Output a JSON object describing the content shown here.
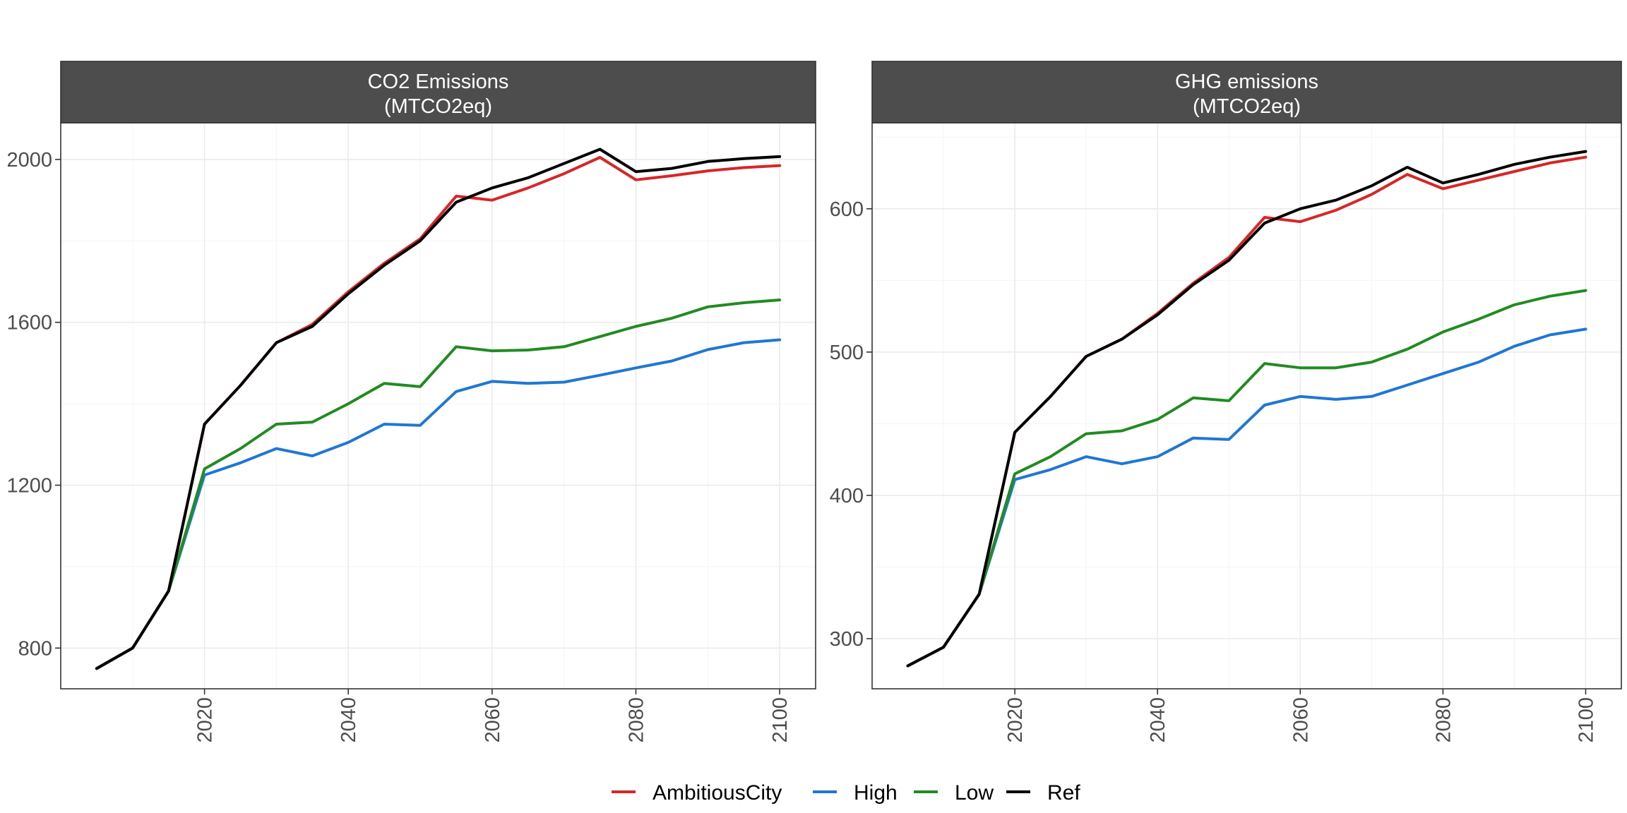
{
  "colors": {
    "AmbitiousCity": "#d62728",
    "High": "#1f77d4",
    "Low": "#228b22",
    "Ref": "#000000",
    "strip": "#4d4d4d"
  },
  "legend": [
    "AmbitiousCity",
    "High",
    "Low",
    "Ref"
  ],
  "chart_data": [
    {
      "type": "line",
      "title": "CO2 Emissions\n(MTCO2eq)",
      "xlabel": "",
      "ylabel": "",
      "x": [
        2005,
        2010,
        2015,
        2020,
        2025,
        2030,
        2035,
        2040,
        2045,
        2050,
        2055,
        2060,
        2065,
        2070,
        2075,
        2080,
        2085,
        2090,
        2095,
        2100
      ],
      "xlim": [
        2000,
        2105
      ],
      "ylim": [
        700,
        2090
      ],
      "xticks": [
        2020,
        2040,
        2060,
        2080,
        2100
      ],
      "yticks": [
        800,
        1200,
        1600,
        2000
      ],
      "grid": true,
      "series": [
        {
          "name": "AmbitiousCity",
          "values": [
            750,
            800,
            940,
            1350,
            1445,
            1550,
            1595,
            1675,
            1745,
            1805,
            1910,
            1900,
            1930,
            1965,
            2005,
            1950,
            1960,
            1972,
            1980,
            1985
          ]
        },
        {
          "name": "High",
          "values": [
            750,
            800,
            940,
            1225,
            1255,
            1290,
            1272,
            1305,
            1350,
            1347,
            1430,
            1455,
            1450,
            1453,
            1470,
            1488,
            1505,
            1533,
            1550,
            1557
          ]
        },
        {
          "name": "Low",
          "values": [
            750,
            800,
            940,
            1240,
            1290,
            1350,
            1355,
            1400,
            1450,
            1442,
            1540,
            1530,
            1532,
            1540,
            1565,
            1590,
            1610,
            1638,
            1648,
            1655
          ]
        },
        {
          "name": "Ref",
          "values": [
            750,
            800,
            940,
            1350,
            1445,
            1550,
            1590,
            1670,
            1740,
            1800,
            1895,
            1930,
            1955,
            1990,
            2025,
            1970,
            1978,
            1995,
            2002,
            2007
          ]
        }
      ]
    },
    {
      "type": "line",
      "title": "GHG emissions\n(MTCO2eq)",
      "xlabel": "",
      "ylabel": "",
      "x": [
        2005,
        2010,
        2015,
        2020,
        2025,
        2030,
        2035,
        2040,
        2045,
        2050,
        2055,
        2060,
        2065,
        2070,
        2075,
        2080,
        2085,
        2090,
        2095,
        2100
      ],
      "xlim": [
        2000,
        2105
      ],
      "ylim": [
        265,
        660
      ],
      "xticks": [
        2020,
        2040,
        2060,
        2080,
        2100
      ],
      "yticks": [
        300,
        400,
        500,
        600
      ],
      "grid": true,
      "series": [
        {
          "name": "AmbitiousCity",
          "values": [
            281,
            294,
            331,
            444,
            469,
            497,
            509,
            527,
            548,
            566,
            594,
            591,
            599,
            610,
            624,
            614,
            620,
            626,
            632,
            636
          ]
        },
        {
          "name": "High",
          "values": [
            281,
            294,
            331,
            411,
            418,
            427,
            422,
            427,
            440,
            439,
            463,
            469,
            467,
            469,
            477,
            485,
            493,
            504,
            512,
            516
          ]
        },
        {
          "name": "Low",
          "values": [
            281,
            294,
            331,
            415,
            427,
            443,
            445,
            453,
            468,
            466,
            492,
            489,
            489,
            493,
            502,
            514,
            523,
            533,
            539,
            543
          ]
        },
        {
          "name": "Ref",
          "values": [
            281,
            294,
            331,
            444,
            469,
            497,
            509,
            526,
            547,
            564,
            590,
            600,
            606,
            616,
            629,
            618,
            624,
            631,
            636,
            640
          ]
        }
      ]
    }
  ]
}
